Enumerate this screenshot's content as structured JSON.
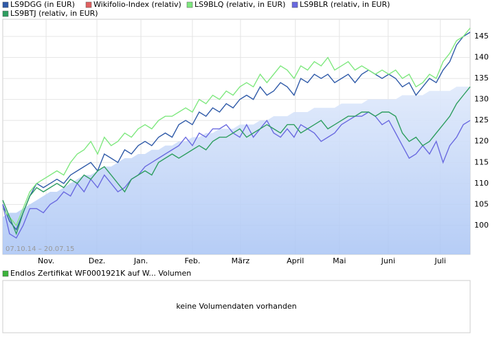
{
  "chart_data": {
    "type": "line",
    "range_label": "07.10.14 – 20.07.15",
    "volume_legend": "Endlos Zertifikat WF0001921K auf W... Volumen",
    "volume_legend_color": "#3cb43c",
    "volume_message": "keine Volumendaten vorhanden",
    "xlim": [
      0,
      69
    ],
    "xticks": [
      {
        "value": 6.4,
        "label": "Nov."
      },
      {
        "value": 13.9,
        "label": "Dez."
      },
      {
        "value": 20.4,
        "label": "Jan."
      },
      {
        "value": 28.0,
        "label": "Feb."
      },
      {
        "value": 35.1,
        "label": "März"
      },
      {
        "value": 43.2,
        "label": "April"
      },
      {
        "value": 49.7,
        "label": "Mai"
      },
      {
        "value": 56.9,
        "label": "Juni"
      },
      {
        "value": 64.6,
        "label": "Juli"
      }
    ],
    "ylim": [
      93.1,
      149.1
    ],
    "yticks": [
      100,
      105,
      110,
      115,
      120,
      125,
      130,
      135,
      140,
      145
    ],
    "grid": true,
    "series": [
      {
        "name": "LS9DGG (in EUR)",
        "color": "#2f5aa8",
        "values": [
          105,
          101,
          99,
          103,
          107,
          110,
          109,
          110,
          111,
          110,
          112,
          113,
          114,
          115,
          113,
          117,
          116,
          115,
          118,
          117,
          119,
          120,
          119,
          121,
          122,
          121,
          124,
          125,
          124,
          127,
          126,
          128,
          127,
          129,
          128,
          130,
          131,
          130,
          133,
          131,
          132,
          134,
          133,
          131,
          135,
          134,
          136,
          135,
          136,
          134,
          135,
          136,
          134,
          136,
          137,
          136,
          135,
          136,
          135,
          133,
          134,
          131,
          133,
          135,
          134,
          137,
          139,
          143,
          145,
          146
        ]
      },
      {
        "name": "Wikifolio-Index (relativ)",
        "color": "#e06060",
        "fill": "#a9c4f5",
        "area": true,
        "values": [
          102,
          103,
          103,
          104,
          105,
          106,
          107,
          108,
          108,
          109,
          110,
          111,
          112,
          112,
          113,
          114,
          114,
          115,
          116,
          116,
          117,
          117,
          118,
          118,
          119,
          119,
          120,
          120,
          121,
          121,
          122,
          122,
          123,
          123,
          123,
          124,
          124,
          124,
          125,
          125,
          126,
          126,
          126,
          127,
          127,
          127,
          128,
          128,
          128,
          128,
          129,
          129,
          129,
          129,
          130,
          130,
          130,
          130,
          130,
          131,
          131,
          131,
          131,
          132,
          132,
          132,
          132,
          133,
          133,
          133
        ]
      },
      {
        "name": "LS9BLQ (relativ, in EUR)",
        "color": "#7fe87f",
        "values": [
          104,
          102,
          100,
          104,
          108,
          110,
          111,
          112,
          113,
          112,
          115,
          117,
          118,
          120,
          117,
          121,
          119,
          120,
          122,
          121,
          123,
          124,
          123,
          125,
          126,
          126,
          127,
          128,
          127,
          130,
          129,
          131,
          130,
          132,
          131,
          133,
          134,
          133,
          136,
          134,
          136,
          138,
          137,
          135,
          138,
          137,
          139,
          138,
          140,
          137,
          138,
          139,
          137,
          138,
          137,
          136,
          137,
          136,
          137,
          135,
          136,
          133,
          134,
          136,
          135,
          139,
          141,
          144,
          145,
          147
        ]
      },
      {
        "name": "LS9BLR (relativ, in EUR)",
        "color": "#6a6ae0",
        "values": [
          105,
          98,
          97,
          100,
          104,
          104,
          103,
          105,
          106,
          108,
          107,
          110,
          108,
          111,
          109,
          112,
          110,
          108,
          109,
          111,
          112,
          114,
          115,
          116,
          117,
          118,
          119,
          121,
          119,
          122,
          121,
          123,
          123,
          124,
          122,
          121,
          124,
          121,
          123,
          125,
          122,
          121,
          123,
          121,
          124,
          123,
          122,
          120,
          121,
          122,
          124,
          125,
          126,
          126,
          127,
          126,
          124,
          125,
          122,
          119,
          116,
          117,
          119,
          117,
          120,
          115,
          119,
          121,
          124,
          125
        ]
      },
      {
        "name": "LS9BTJ (relativ, in EUR)",
        "color": "#2e9e60",
        "values": [
          106,
          102,
          98,
          103,
          107,
          109,
          108,
          109,
          110,
          109,
          111,
          110,
          112,
          111,
          113,
          114,
          112,
          110,
          108,
          111,
          112,
          113,
          112,
          115,
          116,
          117,
          116,
          117,
          118,
          119,
          118,
          120,
          121,
          121,
          122,
          123,
          121,
          122,
          123,
          124,
          123,
          122,
          124,
          124,
          122,
          123,
          124,
          125,
          123,
          124,
          125,
          126,
          126,
          127,
          127,
          126,
          127,
          127,
          126,
          122,
          120,
          121,
          119,
          120,
          122,
          124,
          126,
          129,
          131,
          133
        ]
      }
    ]
  }
}
